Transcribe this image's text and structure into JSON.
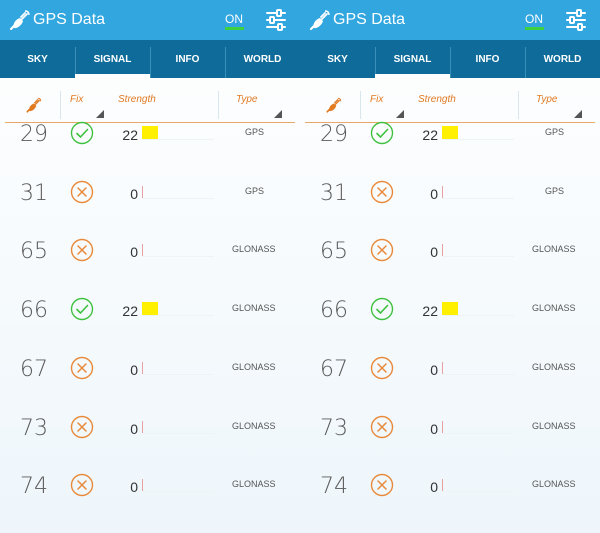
{
  "panels": [
    {
      "title": "GPS Data",
      "status": "ON",
      "tabs": [
        "SKY",
        "SIGNAL",
        "INFO",
        "WORLD"
      ],
      "active_tab": 1,
      "headers": {
        "fix": "Fix",
        "strength": "Strength",
        "type": "Type"
      },
      "rows": [
        {
          "prn": "29",
          "fix": "ok",
          "strength": "22",
          "bar_fraction": 0.22,
          "type": "GPS"
        },
        {
          "prn": "31",
          "fix": "no",
          "strength": "0",
          "bar_fraction": 0,
          "type": "GPS"
        },
        {
          "prn": "65",
          "fix": "no",
          "strength": "0",
          "bar_fraction": 0,
          "type": "GLONASS"
        },
        {
          "prn": "66",
          "fix": "ok",
          "strength": "22",
          "bar_fraction": 0.22,
          "type": "GLONASS"
        },
        {
          "prn": "67",
          "fix": "no",
          "strength": "0",
          "bar_fraction": 0,
          "type": "GLONASS"
        },
        {
          "prn": "73",
          "fix": "no",
          "strength": "0",
          "bar_fraction": 0,
          "type": "GLONASS"
        },
        {
          "prn": "74",
          "fix": "no",
          "strength": "0",
          "bar_fraction": 0,
          "type": "GLONASS"
        }
      ]
    },
    {
      "title": "GPS Data",
      "status": "ON",
      "tabs": [
        "SKY",
        "SIGNAL",
        "INFO",
        "WORLD"
      ],
      "active_tab": 1,
      "headers": {
        "fix": "Fix",
        "strength": "Strength",
        "type": "Type"
      },
      "rows": [
        {
          "prn": "29",
          "fix": "ok",
          "strength": "22",
          "bar_fraction": 0.22,
          "type": "GPS"
        },
        {
          "prn": "31",
          "fix": "no",
          "strength": "0",
          "bar_fraction": 0,
          "type": "GPS"
        },
        {
          "prn": "65",
          "fix": "no",
          "strength": "0",
          "bar_fraction": 0,
          "type": "GLONASS"
        },
        {
          "prn": "66",
          "fix": "ok",
          "strength": "22",
          "bar_fraction": 0.22,
          "type": "GLONASS"
        },
        {
          "prn": "67",
          "fix": "no",
          "strength": "0",
          "bar_fraction": 0,
          "type": "GLONASS"
        },
        {
          "prn": "73",
          "fix": "no",
          "strength": "0",
          "bar_fraction": 0,
          "type": "GLONASS"
        },
        {
          "prn": "74",
          "fix": "no",
          "strength": "0",
          "bar_fraction": 0,
          "type": "GLONASS"
        }
      ]
    }
  ],
  "colors": {
    "appbar": "#31a6df",
    "tabbar": "#0f6c9a",
    "fix_ok": "#3fc13f",
    "fix_no": "#e8893a",
    "strength_bar": "#ffef00",
    "header_text": "#e27a22"
  },
  "icons": {
    "app": "satellite-icon",
    "settings": "sliders-icon",
    "sky_header": "satellite-icon",
    "fix_ok": "check-circle-icon",
    "fix_no": "x-circle-icon"
  }
}
